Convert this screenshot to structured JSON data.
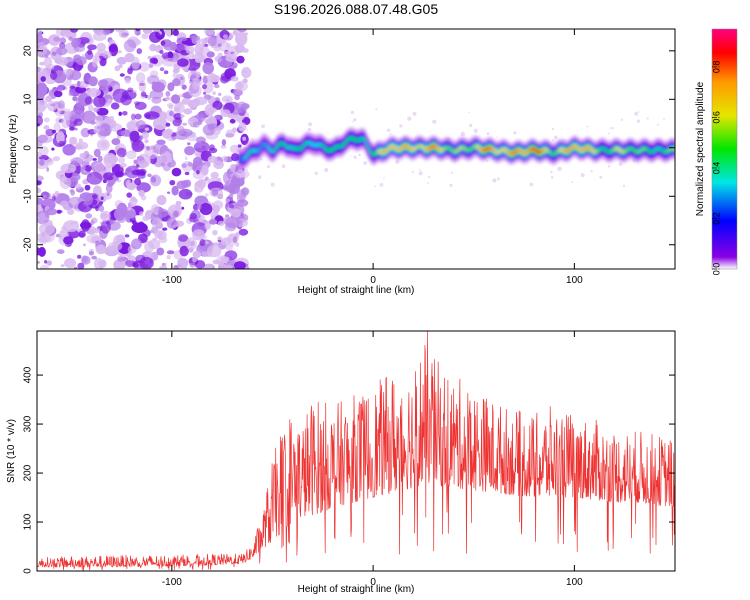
{
  "title": "S196.2026.088.07.48.G05",
  "chart_data": [
    {
      "type": "heatmap",
      "xlabel": "Height of straight line (km)",
      "ylabel": "Frequency (Hz)",
      "xlim": [
        -167,
        150
      ],
      "ylim": [
        -25,
        24.5
      ],
      "x_ticks": [
        -100,
        0,
        100
      ],
      "y_ticks": [
        -20,
        -10,
        0,
        10,
        20
      ],
      "x_tick_labels": [
        "-100",
        "0",
        "100"
      ],
      "y_tick_labels": [
        "-20",
        "-10",
        "0",
        "10",
        "20"
      ],
      "noise_region_x": [
        -167,
        -65
      ],
      "signal_track": {
        "x": [
          -67,
          -63,
          -59,
          -55,
          -50,
          -45,
          -40,
          -35,
          -30,
          -25,
          -20,
          -15,
          -10,
          -5,
          0,
          5,
          10,
          20,
          30,
          40,
          50,
          60,
          70,
          80,
          90,
          100,
          110,
          120,
          130,
          140,
          150
        ],
        "frequency_hz": [
          -2.5,
          -1.5,
          -0.5,
          0.5,
          -0.5,
          1,
          -0.5,
          0.5,
          1,
          0,
          -0.5,
          1,
          2,
          1.5,
          -1.5,
          -0.5,
          0,
          0,
          0,
          -0.5,
          0,
          -0.5,
          -1,
          -0.5,
          -1,
          0,
          -0.5,
          -0.5,
          -0.5,
          -0.5,
          -0.5
        ],
        "amplitude": [
          0.3,
          0.4,
          0.45,
          0.5,
          0.45,
          0.5,
          0.45,
          0.5,
          0.55,
          0.5,
          0.5,
          0.55,
          0.55,
          0.6,
          0.55,
          0.7,
          0.85,
          0.85,
          0.75,
          0.7,
          0.7,
          0.85,
          0.9,
          0.85,
          0.75,
          0.85,
          0.7,
          0.65,
          0.6,
          0.6,
          0.55
        ]
      },
      "colorbar": {
        "label": "Normalized spectral amplitude",
        "range": [
          0,
          0.95
        ],
        "ticks": [
          "0.0",
          "0.2",
          "0.4",
          "0.6",
          "0.8"
        ],
        "colors": [
          "#ffffff",
          "#8a00e6",
          "#0000ff",
          "#00e6e6",
          "#00e600",
          "#e6e600",
          "#ff9900",
          "#ff0000",
          "#ff0080"
        ]
      }
    },
    {
      "type": "line",
      "xlabel": "Height of straight line (km)",
      "ylabel": "SNR (10 * v/v)",
      "xlim": [
        -167,
        150
      ],
      "ylim": [
        0,
        490
      ],
      "x_ticks": [
        -100,
        0,
        100
      ],
      "y_ticks": [
        0,
        100,
        200,
        300,
        400
      ],
      "x_tick_labels": [
        "-100",
        "0",
        "100"
      ],
      "y_tick_labels": [
        "0",
        "100",
        "200",
        "300",
        "400"
      ],
      "series": [
        {
          "name": "SNR",
          "color": "#ee3333",
          "x": [
            -167,
            -130,
            -100,
            -80,
            -65,
            -60,
            -55,
            -50,
            -45,
            -40,
            -35,
            -30,
            -25,
            -20,
            -10,
            0,
            10,
            20,
            27,
            30,
            40,
            50,
            60,
            70,
            80,
            90,
            100,
            110,
            120,
            130,
            140,
            150
          ],
          "envelope_low": [
            8,
            8,
            10,
            12,
            15,
            25,
            45,
            60,
            80,
            100,
            110,
            115,
            120,
            130,
            140,
            150,
            160,
            170,
            180,
            175,
            170,
            165,
            160,
            155,
            150,
            150,
            150,
            145,
            140,
            140,
            135,
            130
          ],
          "envelope_high": [
            28,
            32,
            33,
            35,
            35,
            55,
            120,
            230,
            300,
            340,
            310,
            360,
            350,
            340,
            360,
            380,
            410,
            425,
            490,
            440,
            400,
            380,
            350,
            330,
            320,
            340,
            320,
            310,
            290,
            290,
            280,
            270
          ],
          "peak": {
            "x": 27,
            "y": 490
          }
        }
      ]
    }
  ]
}
